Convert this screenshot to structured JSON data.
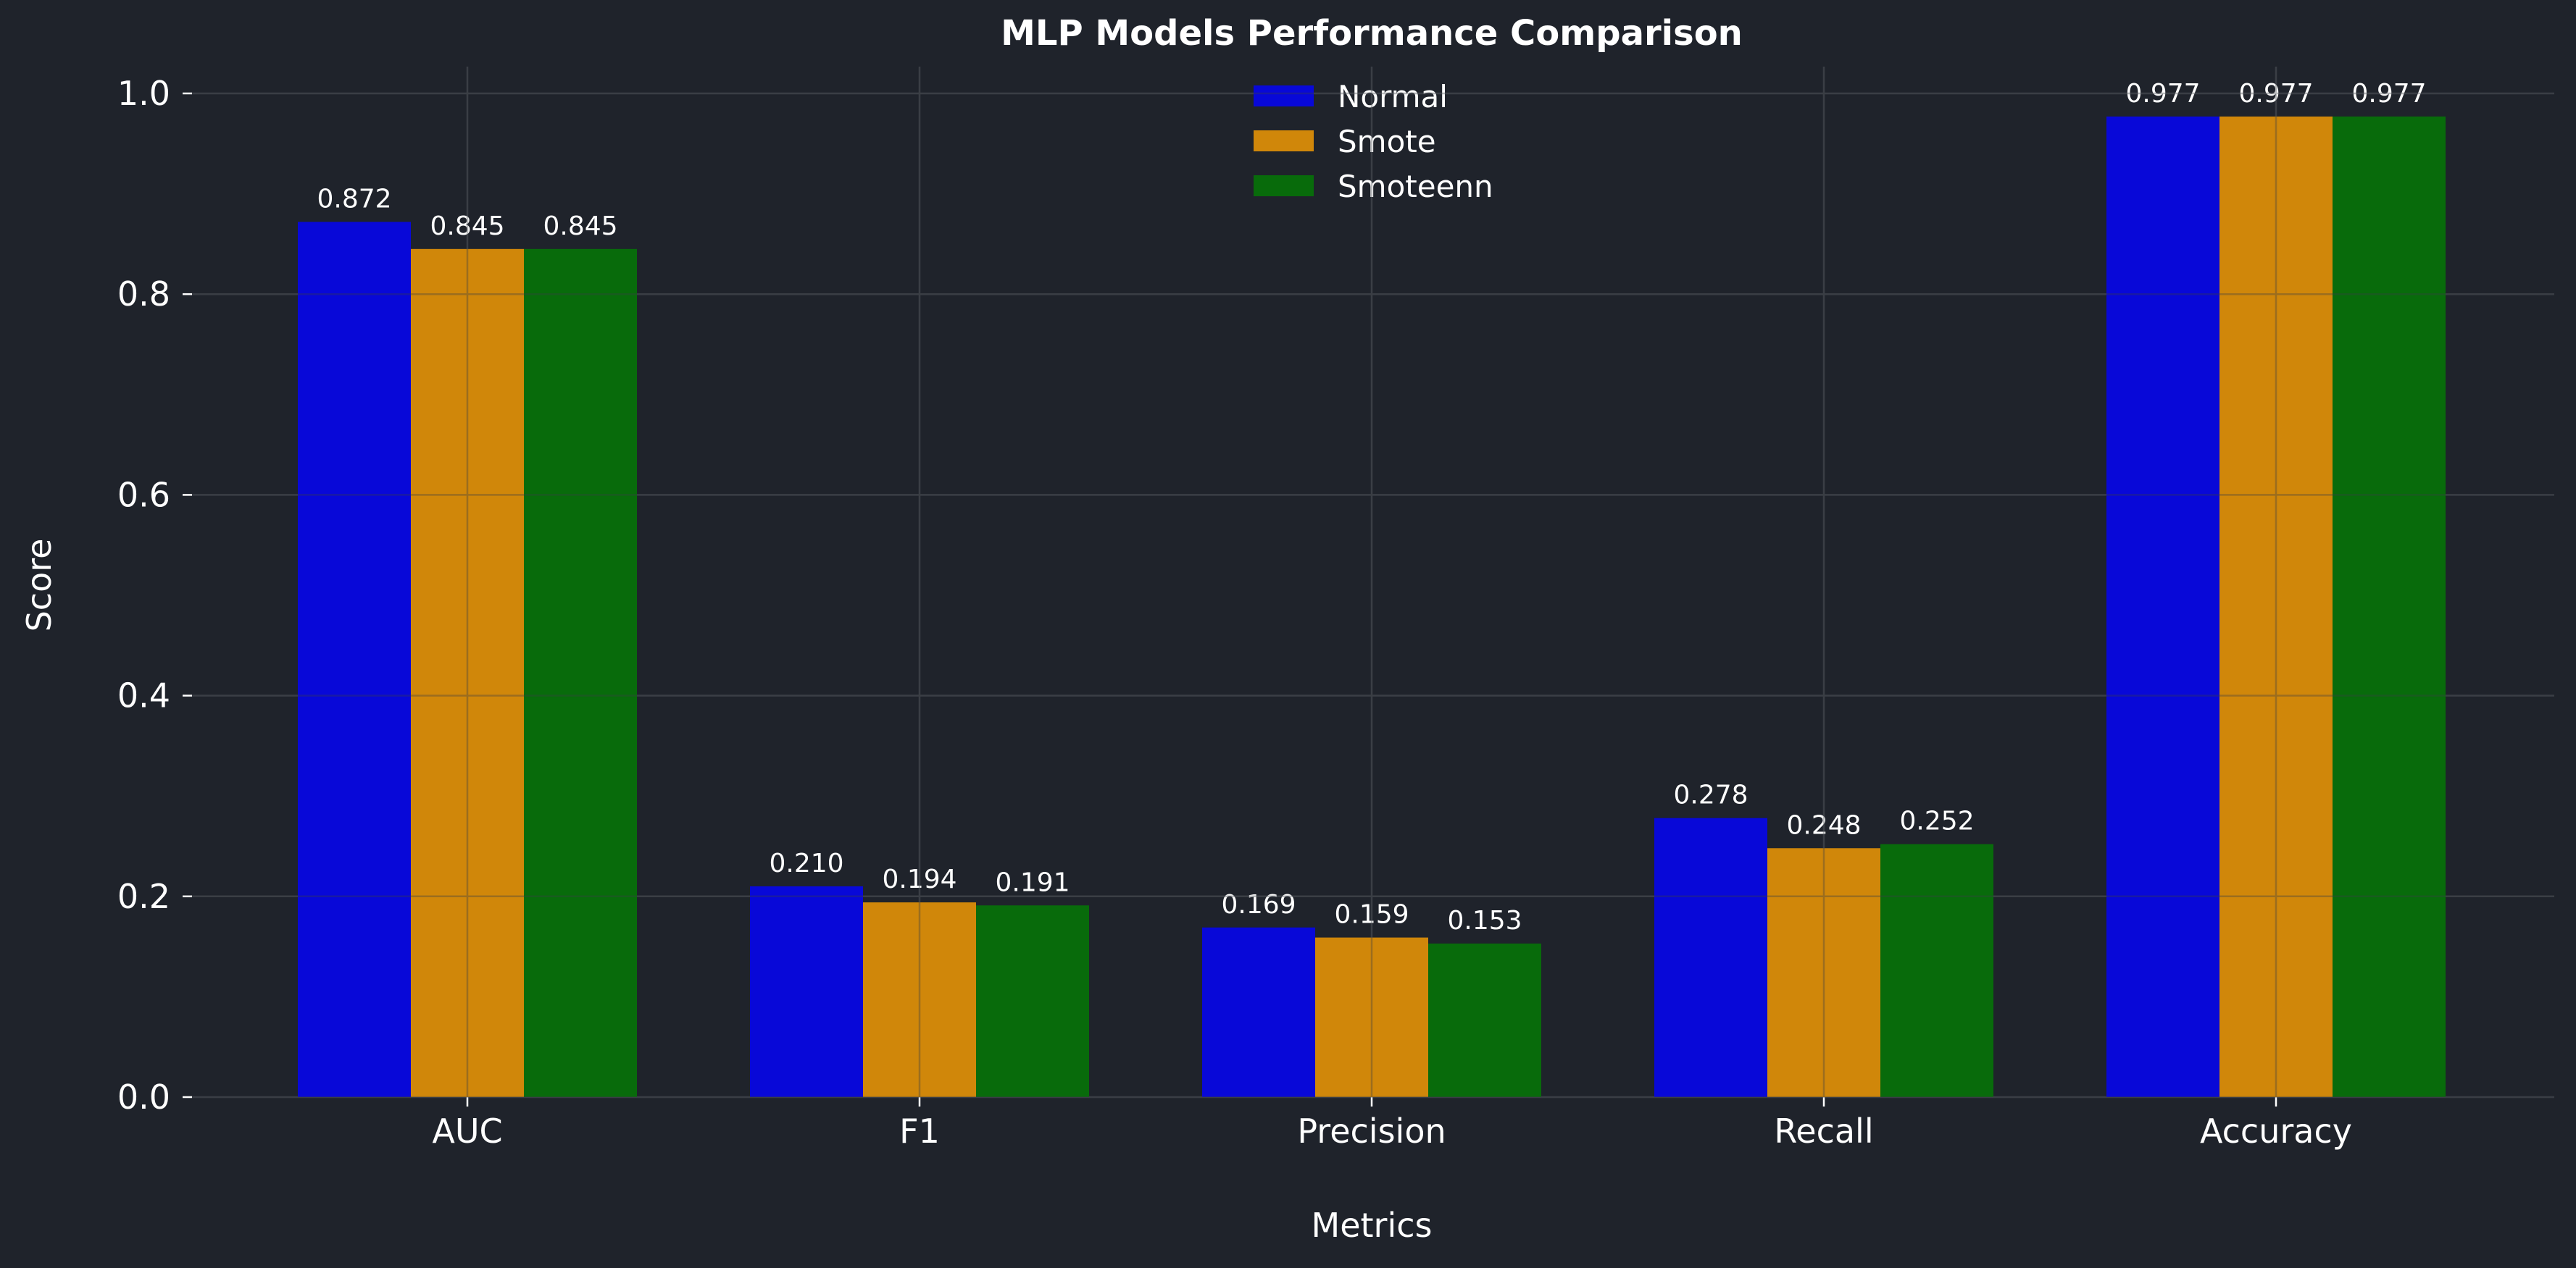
{
  "chart_data": {
    "type": "bar",
    "title": "MLP Models Performance Comparison",
    "xlabel": "Metrics",
    "ylabel": "Score",
    "categories": [
      "AUC",
      "F1",
      "Precision",
      "Recall",
      "Accuracy"
    ],
    "series": [
      {
        "name": "Normal",
        "values": [
          0.872,
          0.21,
          0.169,
          0.278,
          0.977
        ],
        "labels": [
          "0.872",
          "0.210",
          "0.169",
          "0.278",
          "0.977"
        ],
        "color": "#0808d8"
      },
      {
        "name": "Smote",
        "values": [
          0.845,
          0.194,
          0.159,
          0.248,
          0.977
        ],
        "labels": [
          "0.845",
          "0.194",
          "0.159",
          "0.248",
          "0.977"
        ],
        "color": "#d0870a"
      },
      {
        "name": "Smoteenn",
        "values": [
          0.845,
          0.191,
          0.153,
          0.252,
          0.977
        ],
        "labels": [
          "0.845",
          "0.191",
          "0.153",
          "0.252",
          "0.977"
        ],
        "color": "#086b0b"
      }
    ],
    "ylim": [
      0,
      1.0
    ],
    "yticks": [
      "0.0",
      "0.2",
      "0.4",
      "0.6",
      "0.8",
      "1.0"
    ],
    "grid": true,
    "legend_position": "top-center",
    "background_color": "#1f232b",
    "text_color": "#ffffff",
    "grid_color": "#3a3e45"
  }
}
